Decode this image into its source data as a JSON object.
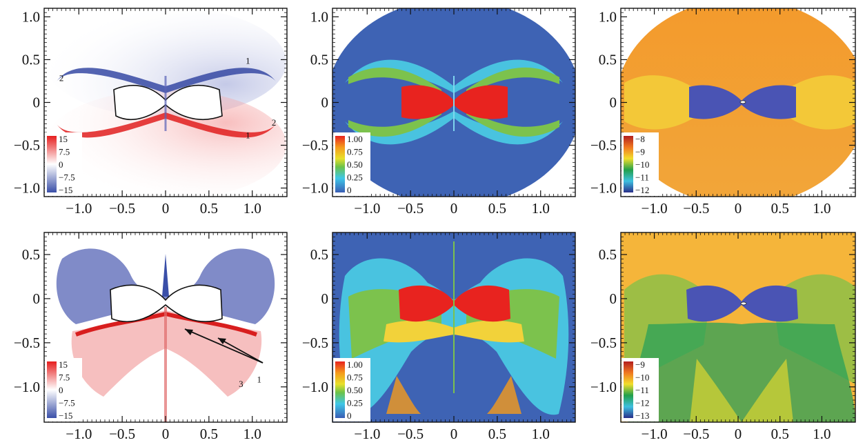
{
  "chart_data": [
    {
      "type": "heatmap",
      "row": 0,
      "col": 0,
      "colormap": "diverging-blue-white-red",
      "xlim": [
        -1.4,
        1.4
      ],
      "ylim": [
        -1.1,
        1.1
      ],
      "xticks": [
        "−1.0",
        "−0.5",
        "0",
        "0.5",
        "1.0"
      ],
      "xtick_values": [
        -1.0,
        -0.5,
        0,
        0.5,
        1.0
      ],
      "yticks": [
        "−1.0",
        "−0.5",
        "0",
        "0.5",
        "1.0"
      ],
      "ytick_values": [
        -1.0,
        -0.5,
        0,
        0.5,
        1.0
      ],
      "colorbar_labels": [
        "15",
        "7.5",
        "0",
        "−7.5",
        "−15"
      ],
      "annotations": [
        {
          "text": "1",
          "x": 0.95,
          "y": 0.45
        },
        {
          "text": "2",
          "x": -1.2,
          "y": 0.25
        },
        {
          "text": "1",
          "x": 0.95,
          "y": -0.42
        },
        {
          "text": "2",
          "x": 1.25,
          "y": -0.27
        }
      ]
    },
    {
      "type": "heatmap",
      "row": 0,
      "col": 1,
      "colormap": "jet",
      "xlim": [
        -1.4,
        1.4
      ],
      "ylim": [
        -1.1,
        1.1
      ],
      "xticks": [
        "−1.0",
        "−0.5",
        "0",
        "0.5",
        "1.0"
      ],
      "xtick_values": [
        -1.0,
        -0.5,
        0,
        0.5,
        1.0
      ],
      "yticks": [
        "−1.0",
        "−0.5",
        "0",
        "0.5",
        "1.0"
      ],
      "ytick_values": [
        -1.0,
        -0.5,
        0,
        0.5,
        1.0
      ],
      "colorbar_labels": [
        "1.00",
        "0.75",
        "0.50",
        "0.25",
        "0"
      ]
    },
    {
      "type": "heatmap",
      "row": 0,
      "col": 2,
      "colormap": "jet",
      "xlim": [
        -1.4,
        1.4
      ],
      "ylim": [
        -1.1,
        1.1
      ],
      "xticks": [
        "−1.0",
        "−0.5",
        "0",
        "0.5",
        "1.0"
      ],
      "xtick_values": [
        -1.0,
        -0.5,
        0,
        0.5,
        1.0
      ],
      "yticks": [
        "−1.0",
        "−0.5",
        "0",
        "0.5",
        "1.0"
      ],
      "ytick_values": [
        -1.0,
        -0.5,
        0,
        0.5,
        1.0
      ],
      "colorbar_labels": [
        "−8",
        "−9",
        "−10",
        "−11",
        "−12"
      ]
    },
    {
      "type": "heatmap",
      "row": 1,
      "col": 0,
      "colormap": "diverging-blue-white-red",
      "xlim": [
        -1.4,
        1.4
      ],
      "ylim": [
        -1.4,
        0.75
      ],
      "xticks": [
        "−1.0",
        "−0.5",
        "0",
        "0.5",
        "1.0"
      ],
      "xtick_values": [
        -1.0,
        -0.5,
        0,
        0.5,
        1.0
      ],
      "yticks": [
        "0.5",
        "0",
        "−0.5",
        "−1.0"
      ],
      "ytick_values": [
        0.5,
        0,
        -0.5,
        -1.0
      ],
      "colorbar_labels": [
        "15",
        "7.5",
        "0",
        "−7.5",
        "−15"
      ],
      "annotations": [
        {
          "text": "1",
          "x": 1.08,
          "y": -0.95
        },
        {
          "text": "3",
          "x": 0.87,
          "y": -1.0
        }
      ]
    },
    {
      "type": "heatmap",
      "row": 1,
      "col": 1,
      "colormap": "jet",
      "xlim": [
        -1.4,
        1.4
      ],
      "ylim": [
        -1.4,
        0.75
      ],
      "xticks": [
        "−1.0",
        "−0.5",
        "0",
        "0.5",
        "1.0"
      ],
      "xtick_values": [
        -1.0,
        -0.5,
        0,
        0.5,
        1.0
      ],
      "yticks": [
        "0.5",
        "0",
        "−0.5",
        "−1.0"
      ],
      "ytick_values": [
        0.5,
        0,
        -0.5,
        -1.0
      ],
      "colorbar_labels": [
        "1.00",
        "0.75",
        "0.50",
        "0.25",
        "0"
      ]
    },
    {
      "type": "heatmap",
      "row": 1,
      "col": 2,
      "colormap": "jet",
      "xlim": [
        -1.4,
        1.4
      ],
      "ylim": [
        -1.4,
        0.75
      ],
      "xticks": [
        "−1.0",
        "−0.5",
        "0",
        "0.5",
        "1.0"
      ],
      "xtick_values": [
        -1.0,
        -0.5,
        0,
        0.5,
        1.0
      ],
      "yticks": [
        "0.5",
        "0",
        "−0.5",
        "−1.0"
      ],
      "ytick_values": [
        0.5,
        0,
        -0.5,
        -1.0
      ],
      "colorbar_labels": [
        "−9",
        "−10",
        "−11",
        "−12",
        "−13"
      ]
    }
  ]
}
